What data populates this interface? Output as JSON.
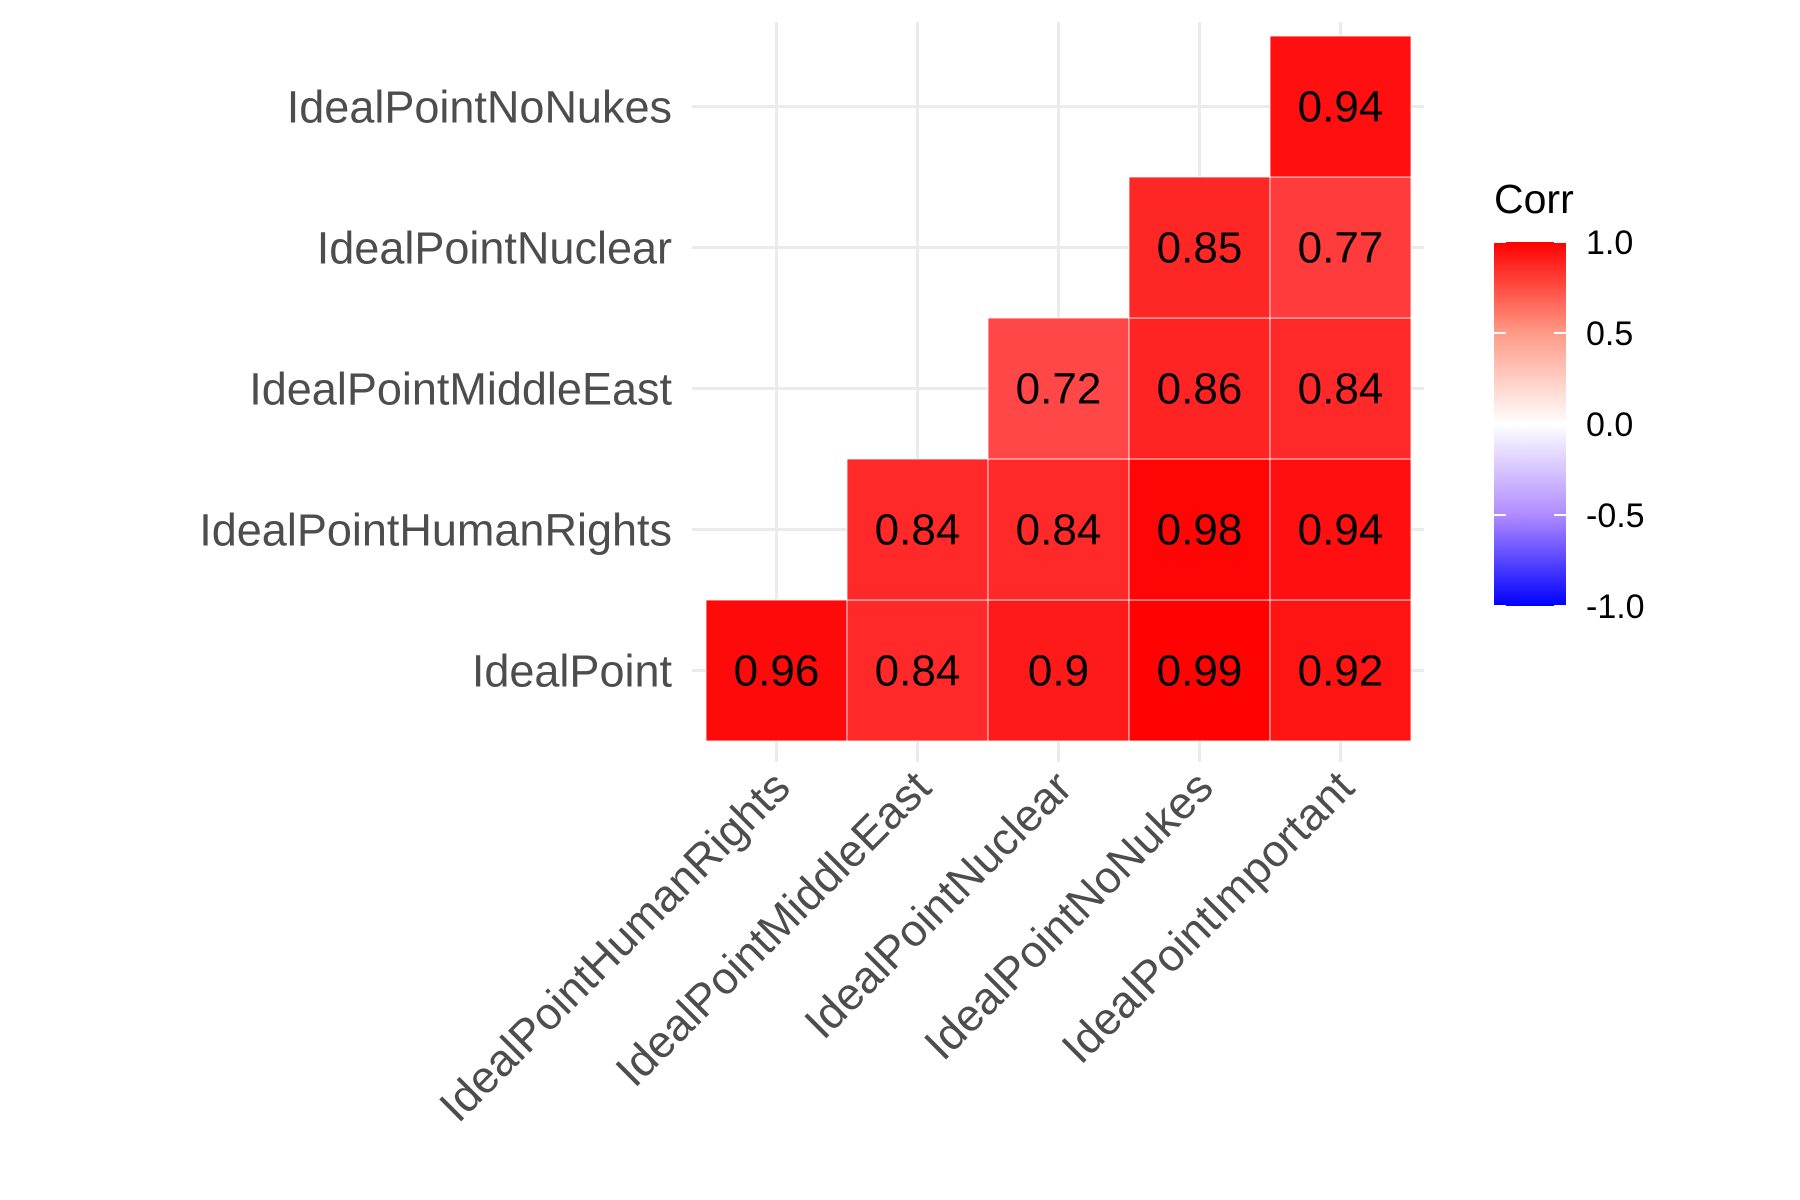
{
  "chart_data": {
    "type": "heatmap",
    "title": "",
    "xlabel": "",
    "ylabel": "",
    "x_categories": [
      "IdealPointHumanRights",
      "IdealPointMiddleEast",
      "IdealPointNuclear",
      "IdealPointNoNukes",
      "IdealPointImportant"
    ],
    "y_categories": [
      "IdealPoint",
      "IdealPointHumanRights",
      "IdealPointMiddleEast",
      "IdealPointNuclear",
      "IdealPointNoNukes"
    ],
    "cells": [
      {
        "x": "IdealPointHumanRights",
        "y": "IdealPoint",
        "value": 0.96,
        "label": "0.96"
      },
      {
        "x": "IdealPointMiddleEast",
        "y": "IdealPoint",
        "value": 0.84,
        "label": "0.84"
      },
      {
        "x": "IdealPointNuclear",
        "y": "IdealPoint",
        "value": 0.9,
        "label": "0.9"
      },
      {
        "x": "IdealPointNoNukes",
        "y": "IdealPoint",
        "value": 0.99,
        "label": "0.99"
      },
      {
        "x": "IdealPointImportant",
        "y": "IdealPoint",
        "value": 0.92,
        "label": "0.92"
      },
      {
        "x": "IdealPointMiddleEast",
        "y": "IdealPointHumanRights",
        "value": 0.84,
        "label": "0.84"
      },
      {
        "x": "IdealPointNuclear",
        "y": "IdealPointHumanRights",
        "value": 0.84,
        "label": "0.84"
      },
      {
        "x": "IdealPointNoNukes",
        "y": "IdealPointHumanRights",
        "value": 0.98,
        "label": "0.98"
      },
      {
        "x": "IdealPointImportant",
        "y": "IdealPointHumanRights",
        "value": 0.94,
        "label": "0.94"
      },
      {
        "x": "IdealPointNuclear",
        "y": "IdealPointMiddleEast",
        "value": 0.72,
        "label": "0.72"
      },
      {
        "x": "IdealPointNoNukes",
        "y": "IdealPointMiddleEast",
        "value": 0.86,
        "label": "0.86"
      },
      {
        "x": "IdealPointImportant",
        "y": "IdealPointMiddleEast",
        "value": 0.84,
        "label": "0.84"
      },
      {
        "x": "IdealPointNoNukes",
        "y": "IdealPointNuclear",
        "value": 0.85,
        "label": "0.85"
      },
      {
        "x": "IdealPointImportant",
        "y": "IdealPointNuclear",
        "value": 0.77,
        "label": "0.77"
      },
      {
        "x": "IdealPointImportant",
        "y": "IdealPointNoNukes",
        "value": 0.94,
        "label": "0.94"
      }
    ],
    "legend": {
      "title": "Corr",
      "placement": "right",
      "range": [
        -1,
        1
      ],
      "ticks": [
        1.0,
        0.5,
        0.0,
        -0.5,
        -1.0
      ],
      "tick_labels": [
        "1.0",
        "0.5",
        "0.0",
        "-0.5",
        "-1.0"
      ],
      "colors": {
        "low": "#0000ff",
        "mid": "#ffffff",
        "high": "#ff0000"
      }
    },
    "grid": true
  }
}
